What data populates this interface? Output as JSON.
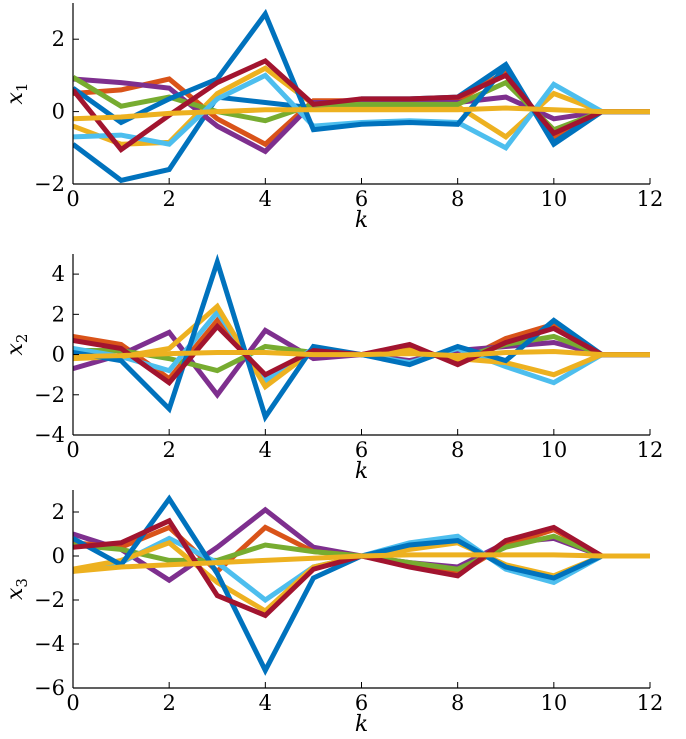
{
  "chart_data": [
    {
      "type": "line",
      "ylabel": "x1",
      "ylabel_main": "x",
      "ylabel_sub": "1",
      "xlabel": "k",
      "xlim": [
        0,
        12
      ],
      "ylim": [
        -2,
        3
      ],
      "xticks": [
        0,
        2,
        4,
        6,
        8,
        10,
        12
      ],
      "yticks": [
        -2,
        0,
        2
      ],
      "ytick_labels": [
        "−2",
        "0",
        "2"
      ],
      "x": [
        0,
        1,
        2,
        3,
        4,
        5,
        6,
        7,
        8,
        9,
        10,
        11,
        12
      ],
      "series": [
        {
          "color": "#0072BD",
          "values": [
            -0.9,
            -1.9,
            -1.6,
            0.4,
            0.25,
            0.1,
            0.35,
            0.35,
            0.4,
            1.3,
            -0.9,
            0,
            0
          ]
        },
        {
          "color": "#D95319",
          "values": [
            0.5,
            0.6,
            0.9,
            -0.2,
            -0.9,
            0.3,
            0.3,
            0.3,
            0.3,
            1.1,
            -0.7,
            0,
            0
          ]
        },
        {
          "color": "#EDB120",
          "values": [
            -0.4,
            -0.9,
            -0.85,
            0.5,
            1.2,
            0.2,
            0.15,
            0.15,
            0.15,
            -0.7,
            0.5,
            0,
            0
          ]
        },
        {
          "color": "#7E2F8E",
          "values": [
            0.9,
            0.8,
            0.65,
            -0.4,
            -1.1,
            0.25,
            0.25,
            0.25,
            0.25,
            0.4,
            -0.2,
            0,
            0
          ]
        },
        {
          "color": "#77AC30",
          "values": [
            0.95,
            0.15,
            0.4,
            0.0,
            -0.25,
            0.2,
            0.2,
            0.2,
            0.2,
            0.8,
            -0.5,
            0,
            0
          ]
        },
        {
          "color": "#4DBEEE",
          "values": [
            -0.7,
            -0.65,
            -0.9,
            0.35,
            1.0,
            -0.4,
            -0.3,
            -0.25,
            -0.3,
            -1.0,
            0.75,
            0,
            0
          ]
        },
        {
          "color": "#0072BD",
          "values": [
            0.65,
            -0.3,
            0.35,
            0.9,
            2.7,
            -0.5,
            -0.35,
            -0.3,
            -0.35,
            1.25,
            -0.85,
            0,
            0
          ]
        },
        {
          "color": "#A2142F",
          "values": [
            0.6,
            -1.05,
            -0.1,
            0.8,
            1.4,
            0.2,
            0.35,
            0.35,
            0.4,
            1.0,
            -0.6,
            0,
            0
          ]
        },
        {
          "color": "#EDB120",
          "values": [
            -0.2,
            -0.15,
            -0.05,
            0.0,
            0.05,
            0.05,
            0.05,
            0.05,
            0.05,
            0.1,
            0.05,
            0,
            0
          ]
        }
      ]
    },
    {
      "type": "line",
      "ylabel": "x2",
      "ylabel_main": "x",
      "ylabel_sub": "2",
      "xlabel": "k",
      "xlim": [
        0,
        12
      ],
      "ylim": [
        -4,
        5
      ],
      "xticks": [
        0,
        2,
        4,
        6,
        8,
        10,
        12
      ],
      "yticks": [
        -4,
        -2,
        0,
        2,
        4
      ],
      "ytick_labels": [
        "−4",
        "−2",
        "0",
        "2",
        "4"
      ],
      "x": [
        0,
        1,
        2,
        3,
        4,
        5,
        6,
        7,
        8,
        9,
        10,
        11,
        12
      ],
      "series": [
        {
          "color": "#D95319",
          "values": [
            0.9,
            0.5,
            -1.2,
            1.7,
            -1.2,
            0.2,
            0,
            0.4,
            -0.4,
            0.8,
            1.5,
            0,
            0
          ]
        },
        {
          "color": "#7E2F8E",
          "values": [
            -0.7,
            0.0,
            1.1,
            -2.0,
            1.2,
            -0.2,
            0,
            -0.3,
            0.2,
            0.4,
            0.6,
            0,
            0
          ]
        },
        {
          "color": "#77AC30",
          "values": [
            0.2,
            0.2,
            -0.2,
            -0.8,
            0.4,
            0.1,
            0,
            0.2,
            -0.2,
            0.5,
            0.9,
            0,
            0
          ]
        },
        {
          "color": "#4DBEEE",
          "values": [
            0.3,
            -0.1,
            -0.8,
            2.1,
            -1.3,
            0.3,
            0,
            -0.4,
            0.3,
            -0.6,
            -1.4,
            0,
            0
          ]
        },
        {
          "color": "#EDB120",
          "values": [
            -0.2,
            -0.1,
            0.3,
            2.4,
            -1.6,
            0.2,
            0,
            0.2,
            -0.2,
            -0.4,
            -1.0,
            0,
            0
          ]
        },
        {
          "color": "#0072BD",
          "values": [
            0.1,
            -0.3,
            -2.7,
            4.6,
            -3.1,
            0.4,
            0,
            -0.5,
            0.4,
            -0.3,
            1.7,
            0,
            0
          ]
        },
        {
          "color": "#A2142F",
          "values": [
            0.7,
            0.3,
            -1.4,
            1.4,
            -1.0,
            0.2,
            0,
            0.5,
            -0.5,
            0.6,
            1.3,
            0,
            0
          ]
        },
        {
          "color": "#EDB120",
          "values": [
            -0.1,
            -0.05,
            0.05,
            0.1,
            0.1,
            0.0,
            0,
            0.05,
            -0.05,
            0.1,
            0.15,
            0,
            0
          ]
        }
      ]
    },
    {
      "type": "line",
      "ylabel": "x3",
      "ylabel_main": "x",
      "ylabel_sub": "3",
      "xlabel": "k",
      "xlim": [
        0,
        12
      ],
      "ylim": [
        -6,
        3
      ],
      "xticks": [
        0,
        2,
        4,
        6,
        8,
        10,
        12
      ],
      "yticks": [
        -6,
        -4,
        -2,
        0,
        2
      ],
      "ytick_labels": [
        "−6",
        "−4",
        "−2",
        "0",
        "2"
      ],
      "x": [
        0,
        1,
        2,
        3,
        4,
        5,
        6,
        7,
        8,
        9,
        10,
        11,
        12
      ],
      "series": [
        {
          "color": "#7E2F8E",
          "values": [
            1.0,
            0.3,
            -1.1,
            0.4,
            2.1,
            0.4,
            0,
            -0.3,
            -0.5,
            0.6,
            0.8,
            0,
            0
          ]
        },
        {
          "color": "#D95319",
          "values": [
            0.6,
            0.4,
            1.3,
            -0.7,
            1.3,
            0.2,
            0,
            -0.4,
            -0.8,
            0.5,
            1.2,
            0,
            0
          ]
        },
        {
          "color": "#77AC30",
          "values": [
            0.5,
            0.3,
            -0.2,
            -0.2,
            0.5,
            0.2,
            0,
            -0.3,
            -0.6,
            0.4,
            0.9,
            0,
            0
          ]
        },
        {
          "color": "#4DBEEE",
          "values": [
            -0.7,
            -0.3,
            0.8,
            -0.3,
            -2.0,
            -0.5,
            0,
            0.6,
            0.9,
            -0.6,
            -1.2,
            0,
            0
          ]
        },
        {
          "color": "#EDB120",
          "values": [
            -0.6,
            -0.2,
            0.6,
            -1.2,
            -2.5,
            -0.5,
            0,
            0.3,
            0.6,
            -0.4,
            -0.9,
            0,
            0
          ]
        },
        {
          "color": "#0072BD",
          "values": [
            0.8,
            -0.4,
            2.6,
            -0.8,
            -5.2,
            -1.0,
            0,
            0.5,
            0.7,
            -0.5,
            -1.0,
            0,
            0
          ]
        },
        {
          "color": "#A2142F",
          "values": [
            0.4,
            0.6,
            1.6,
            -1.8,
            -2.7,
            -0.6,
            0,
            -0.5,
            -0.9,
            0.7,
            1.3,
            0,
            0
          ]
        },
        {
          "color": "#EDB120",
          "values": [
            -0.7,
            -0.5,
            -0.4,
            -0.3,
            -0.2,
            -0.1,
            0,
            0.05,
            0.05,
            0.05,
            0.05,
            0,
            0
          ]
        }
      ]
    }
  ]
}
